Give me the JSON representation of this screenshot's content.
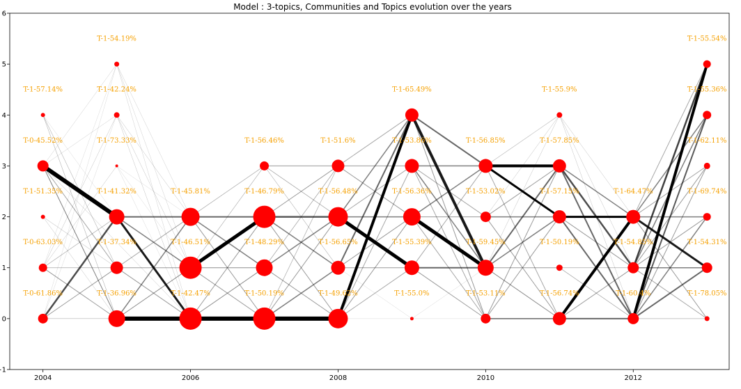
{
  "chart_data": {
    "type": "scatter",
    "title": "Model : 3-topics, Communities and Topics evolution over the years",
    "xlabel": "",
    "ylabel": "",
    "xlim": [
      2003.55,
      2013.3
    ],
    "ylim": [
      -1,
      6
    ],
    "x_ticks": [
      2004,
      2006,
      2008,
      2010,
      2012
    ],
    "y_ticks": [
      -1,
      0,
      1,
      2,
      3,
      4,
      5,
      6
    ],
    "grid": false,
    "colors": {
      "node": "#ff0000",
      "label": "#f5a000",
      "edge": "#000000"
    },
    "nodes": [
      {
        "id": "a0",
        "x": 2004,
        "y": 0,
        "size": 7,
        "label": "T-0-61.86%"
      },
      {
        "id": "a1",
        "x": 2004,
        "y": 1,
        "size": 6,
        "label": "T-0-63.03%"
      },
      {
        "id": "a2",
        "x": 2004,
        "y": 2,
        "size": 3,
        "label": "T-1-51.35%"
      },
      {
        "id": "a3",
        "x": 2004,
        "y": 3,
        "size": 8,
        "label": "T-0-45.52%"
      },
      {
        "id": "a4",
        "x": 2004,
        "y": 4,
        "size": 3,
        "label": "T-1-57.14%"
      },
      {
        "id": "b0",
        "x": 2005,
        "y": 0,
        "size": 12,
        "label": "T-1-36.96%"
      },
      {
        "id": "b1",
        "x": 2005,
        "y": 1,
        "size": 9,
        "label": "T-1-37.34%"
      },
      {
        "id": "b2",
        "x": 2005,
        "y": 2,
        "size": 11,
        "label": "T-1-41.32%"
      },
      {
        "id": "b3",
        "x": 2005,
        "y": 3,
        "size": 2,
        "label": "T-1-73.33%"
      },
      {
        "id": "b4",
        "x": 2005,
        "y": 4,
        "size": 4,
        "label": "T-1-42.24%"
      },
      {
        "id": "b5",
        "x": 2005,
        "y": 5,
        "size": 3.5,
        "label": "T-1-54.19%"
      },
      {
        "id": "c0",
        "x": 2006,
        "y": 0,
        "size": 16,
        "label": "T-1-42.47%"
      },
      {
        "id": "c1",
        "x": 2006,
        "y": 1,
        "size": 16,
        "label": "T-1-46.51%"
      },
      {
        "id": "c2",
        "x": 2006,
        "y": 2,
        "size": 13,
        "label": "T-1-45.81%"
      },
      {
        "id": "d0",
        "x": 2007,
        "y": 0,
        "size": 16,
        "label": "T-1-50.19%"
      },
      {
        "id": "d1",
        "x": 2007,
        "y": 1,
        "size": 12,
        "label": "T-1-48.29%"
      },
      {
        "id": "d2",
        "x": 2007,
        "y": 2,
        "size": 16,
        "label": "T-1-46.79%"
      },
      {
        "id": "d3",
        "x": 2007,
        "y": 3,
        "size": 6.5,
        "label": "T-1-56.46%"
      },
      {
        "id": "e0",
        "x": 2008,
        "y": 0,
        "size": 14,
        "label": "T-1-49.62%"
      },
      {
        "id": "e1",
        "x": 2008,
        "y": 1,
        "size": 10,
        "label": "T-1-56.65%"
      },
      {
        "id": "e2",
        "x": 2008,
        "y": 2,
        "size": 14,
        "label": "T-1-56.48%"
      },
      {
        "id": "e3",
        "x": 2008,
        "y": 3,
        "size": 9,
        "label": "T-1-51.6%"
      },
      {
        "id": "f0",
        "x": 2009,
        "y": 0,
        "size": 2.5,
        "label": "T-1-55.0%"
      },
      {
        "id": "f1",
        "x": 2009,
        "y": 1,
        "size": 10.5,
        "label": "T-1-55.39%"
      },
      {
        "id": "f2",
        "x": 2009,
        "y": 2,
        "size": 12.5,
        "label": "T-1-56.36%"
      },
      {
        "id": "f3",
        "x": 2009,
        "y": 3,
        "size": 10,
        "label": "T-1-53.86%"
      },
      {
        "id": "f4",
        "x": 2009,
        "y": 4,
        "size": 9.5,
        "label": "T-1-65.49%"
      },
      {
        "id": "g0",
        "x": 2010,
        "y": 0,
        "size": 7,
        "label": "T-1-53.11%"
      },
      {
        "id": "g1",
        "x": 2010,
        "y": 1,
        "size": 11.5,
        "label": "T-1-59.45%"
      },
      {
        "id": "g2",
        "x": 2010,
        "y": 2,
        "size": 7.5,
        "label": "T-1-53.02%"
      },
      {
        "id": "g3",
        "x": 2010,
        "y": 3,
        "size": 10,
        "label": "T-1-56.85%"
      },
      {
        "id": "h0",
        "x": 2011,
        "y": 0,
        "size": 9.5,
        "label": "T-1-56.74%"
      },
      {
        "id": "h1",
        "x": 2011,
        "y": 1,
        "size": 4.5,
        "label": "T-1-50.19%"
      },
      {
        "id": "h2",
        "x": 2011,
        "y": 2,
        "size": 9.5,
        "label": "T-1-57.15%"
      },
      {
        "id": "h3",
        "x": 2011,
        "y": 3,
        "size": 9.5,
        "label": "T-1-57.85%"
      },
      {
        "id": "h4",
        "x": 2011,
        "y": 4,
        "size": 4,
        "label": "T-1-55.9%"
      },
      {
        "id": "i0",
        "x": 2012,
        "y": 0,
        "size": 8,
        "label": "T-1-60.4%"
      },
      {
        "id": "i1",
        "x": 2012,
        "y": 1,
        "size": 8,
        "label": "T-1-54.85%"
      },
      {
        "id": "i2",
        "x": 2012,
        "y": 2,
        "size": 10,
        "label": "T-1-64.47%"
      },
      {
        "id": "j0",
        "x": 2013,
        "y": 0,
        "size": 3.5,
        "label": "T-1-78.05%"
      },
      {
        "id": "j1",
        "x": 2013,
        "y": 1,
        "size": 7.5,
        "label": "T-1-54.31%"
      },
      {
        "id": "j2",
        "x": 2013,
        "y": 2,
        "size": 5.5,
        "label": "T-1-69.74%"
      },
      {
        "id": "j3",
        "x": 2013,
        "y": 3,
        "size": 4.5,
        "label": "T-1-62.11%"
      },
      {
        "id": "j4",
        "x": 2013,
        "y": 4,
        "size": 6,
        "label": "T-1-55.36%"
      },
      {
        "id": "j5",
        "x": 2013,
        "y": 5,
        "size": 5.5,
        "label": "T-1-55.54%"
      }
    ],
    "edges": [
      [
        "a3",
        "b2",
        6,
        1.0
      ],
      [
        "a3",
        "b0",
        1,
        0.5
      ],
      [
        "a3",
        "b1",
        1,
        0.35
      ],
      [
        "a3",
        "c0",
        0.5,
        0.25
      ],
      [
        "a0",
        "b2",
        2.5,
        0.7
      ],
      [
        "a0",
        "b1",
        1,
        0.4
      ],
      [
        "a0",
        "b0",
        0.6,
        0.3
      ],
      [
        "a1",
        "b0",
        1,
        0.4
      ],
      [
        "a1",
        "b1",
        0.8,
        0.35
      ],
      [
        "a1",
        "b2",
        0.8,
        0.3
      ],
      [
        "a1",
        "b3",
        0.5,
        0.25
      ],
      [
        "a1",
        "b4",
        0.5,
        0.25
      ],
      [
        "a2",
        "b1",
        0.5,
        0.3
      ],
      [
        "a2",
        "b0",
        0.5,
        0.25
      ],
      [
        "a4",
        "b0",
        0.6,
        0.3
      ],
      [
        "a4",
        "b1",
        0.6,
        0.3
      ],
      [
        "a4",
        "c0",
        0.4,
        0.2
      ],
      [
        "a3",
        "b4",
        0.4,
        0.25
      ],
      [
        "a3",
        "b5",
        0.4,
        0.25
      ],
      [
        "a0",
        "b5",
        0.4,
        0.2
      ],
      [
        "a1",
        "b5",
        0.4,
        0.2
      ],
      [
        "a0",
        "b4",
        0.4,
        0.2
      ],
      [
        "b0",
        "c0",
        6,
        1.0
      ],
      [
        "b2",
        "c0",
        3,
        0.9
      ],
      [
        "b2",
        "c2",
        2,
        0.6
      ],
      [
        "b2",
        "c1",
        1.5,
        0.5
      ],
      [
        "b0",
        "c1",
        1,
        0.45
      ],
      [
        "b0",
        "c2",
        1.5,
        0.5
      ],
      [
        "b1",
        "c0",
        1,
        0.4
      ],
      [
        "b1",
        "c1",
        1,
        0.4
      ],
      [
        "b1",
        "c2",
        1,
        0.35
      ],
      [
        "b4",
        "c0",
        0.5,
        0.25
      ],
      [
        "b4",
        "c1",
        0.5,
        0.25
      ],
      [
        "b4",
        "c2",
        0.5,
        0.25
      ],
      [
        "b5",
        "c0",
        0.5,
        0.2
      ],
      [
        "b5",
        "c1",
        0.5,
        0.2
      ],
      [
        "b5",
        "c2",
        0.5,
        0.2
      ],
      [
        "b3",
        "c0",
        0.4,
        0.2
      ],
      [
        "b3",
        "c1",
        0.4,
        0.2
      ],
      [
        "b3",
        "c2",
        0.4,
        0.2
      ],
      [
        "c0",
        "d0",
        6,
        1.0
      ],
      [
        "c1",
        "d2",
        5,
        1.0
      ],
      [
        "c2",
        "d2",
        2,
        0.6
      ],
      [
        "c2",
        "d1",
        1.5,
        0.5
      ],
      [
        "c2",
        "d0",
        1,
        0.4
      ],
      [
        "c1",
        "d1",
        1,
        0.45
      ],
      [
        "c1",
        "d0",
        1,
        0.4
      ],
      [
        "c1",
        "d3",
        0.7,
        0.3
      ],
      [
        "c0",
        "d1",
        1,
        0.45
      ],
      [
        "c0",
        "d2",
        1,
        0.4
      ],
      [
        "c2",
        "d3",
        0.7,
        0.35
      ],
      [
        "d0",
        "e0",
        6,
        1.0
      ],
      [
        "d2",
        "e2",
        2.5,
        0.65
      ],
      [
        "d2",
        "e1",
        1.5,
        0.5
      ],
      [
        "d1",
        "e2",
        1.5,
        0.5
      ],
      [
        "d1",
        "e0",
        1,
        0.4
      ],
      [
        "d0",
        "e1",
        1.5,
        0.5
      ],
      [
        "d0",
        "e2",
        1,
        0.4
      ],
      [
        "d3",
        "e3",
        1,
        0.4
      ],
      [
        "d3",
        "e2",
        0.8,
        0.35
      ],
      [
        "d3",
        "e1",
        0.6,
        0.3
      ],
      [
        "d2",
        "e0",
        1,
        0.4
      ],
      [
        "d2",
        "e3",
        1,
        0.4
      ],
      [
        "d1",
        "e3",
        0.8,
        0.35
      ],
      [
        "d0",
        "e3",
        0.8,
        0.3
      ],
      [
        "e0",
        "f4",
        4,
        1.0
      ],
      [
        "e2",
        "f1",
        5,
        1.0
      ],
      [
        "e1",
        "f4",
        2,
        0.6
      ],
      [
        "e2",
        "f2",
        1.5,
        0.5
      ],
      [
        "e2",
        "f4",
        1.5,
        0.5
      ],
      [
        "e3",
        "f3",
        1,
        0.4
      ],
      [
        "e3",
        "f2",
        1,
        0.4
      ],
      [
        "e1",
        "f2",
        1,
        0.4
      ],
      [
        "e0",
        "f2",
        1,
        0.4
      ],
      [
        "e0",
        "f1",
        1,
        0.35
      ],
      [
        "e0",
        "f3",
        1,
        0.35
      ],
      [
        "e3",
        "f4",
        1,
        0.35
      ],
      [
        "e2",
        "f3",
        1,
        0.35
      ],
      [
        "e1",
        "f1",
        1,
        0.4
      ],
      [
        "e1",
        "f0",
        0.4,
        0.2
      ],
      [
        "e0",
        "f0",
        0.4,
        0.2
      ],
      [
        "f2",
        "g1",
        5,
        1.0
      ],
      [
        "f4",
        "g1",
        4,
        0.9
      ],
      [
        "f4",
        "g3",
        2,
        0.6
      ],
      [
        "f3",
        "g3",
        1.5,
        0.5
      ],
      [
        "f3",
        "g1",
        1.5,
        0.5
      ],
      [
        "f1",
        "g1",
        2,
        0.6
      ],
      [
        "f1",
        "g0",
        1,
        0.4
      ],
      [
        "f2",
        "g2",
        1,
        0.4
      ],
      [
        "f2",
        "g3",
        1.5,
        0.5
      ],
      [
        "f4",
        "g0",
        1,
        0.4
      ],
      [
        "f3",
        "g0",
        1,
        0.35
      ],
      [
        "f3",
        "g2",
        1,
        0.35
      ],
      [
        "f1",
        "g3",
        1,
        0.35
      ],
      [
        "f2",
        "g0",
        1,
        0.35
      ],
      [
        "f0",
        "g0",
        0.4,
        0.2
      ],
      [
        "f0",
        "g1",
        0.4,
        0.2
      ],
      [
        "g3",
        "h3",
        4,
        1.0
      ],
      [
        "g3",
        "h2",
        3,
        1.0
      ],
      [
        "g1",
        "h3",
        2,
        0.6
      ],
      [
        "g2",
        "h2",
        1.5,
        0.5
      ],
      [
        "g1",
        "h2",
        1.5,
        0.5
      ],
      [
        "g1",
        "h1",
        1,
        0.4
      ],
      [
        "g0",
        "h0",
        1.5,
        0.6
      ],
      [
        "g1",
        "h0",
        1,
        0.45
      ],
      [
        "g0",
        "h3",
        1,
        0.4
      ],
      [
        "g2",
        "h3",
        1,
        0.4
      ],
      [
        "g3",
        "h4",
        0.6,
        0.3
      ],
      [
        "g2",
        "h4",
        0.5,
        0.25
      ],
      [
        "g0",
        "h2",
        1,
        0.4
      ],
      [
        "g2",
        "h0",
        1,
        0.4
      ],
      [
        "g3",
        "h0",
        1,
        0.35
      ],
      [
        "g1",
        "h4",
        0.5,
        0.25
      ],
      [
        "h0",
        "i2",
        4,
        1.0
      ],
      [
        "h2",
        "i2",
        3,
        1.0
      ],
      [
        "h3",
        "i1",
        2.5,
        0.7
      ],
      [
        "h3",
        "i0",
        2,
        0.6
      ],
      [
        "h2",
        "i0",
        2,
        0.6
      ],
      [
        "h3",
        "i2",
        1.5,
        0.5
      ],
      [
        "h0",
        "i0",
        2,
        0.6
      ],
      [
        "h0",
        "i1",
        1,
        0.4
      ],
      [
        "h1",
        "i0",
        0.8,
        0.35
      ],
      [
        "h1",
        "i1",
        0.8,
        0.35
      ],
      [
        "h2",
        "i1",
        1,
        0.4
      ],
      [
        "h4",
        "i0",
        0.5,
        0.25
      ],
      [
        "h4",
        "i1",
        0.5,
        0.25
      ],
      [
        "h4",
        "i2",
        0.5,
        0.25
      ],
      [
        "i0",
        "j5",
        4,
        1.0
      ],
      [
        "i1",
        "j5",
        2.5,
        0.75
      ],
      [
        "i2",
        "j1",
        3,
        0.9
      ],
      [
        "i2",
        "j2",
        1.5,
        0.5
      ],
      [
        "i2",
        "j4",
        1.5,
        0.5
      ],
      [
        "i0",
        "j4",
        2,
        0.65
      ],
      [
        "i1",
        "j4",
        1.5,
        0.5
      ],
      [
        "i1",
        "j3",
        1,
        0.4
      ],
      [
        "i0",
        "j3",
        1,
        0.4
      ],
      [
        "i1",
        "j2",
        1,
        0.4
      ],
      [
        "i0",
        "j2",
        1.5,
        0.5
      ],
      [
        "i2",
        "j0",
        1,
        0.4
      ],
      [
        "i1",
        "j0",
        1,
        0.35
      ],
      [
        "i0",
        "j1",
        2,
        0.6
      ],
      [
        "i1",
        "j1",
        1.5,
        0.5
      ],
      [
        "i2",
        "j3",
        1,
        0.35
      ],
      [
        "i2",
        "j5",
        1,
        0.35
      ],
      [
        "i0",
        "j0",
        0.8,
        0.3
      ]
    ]
  }
}
